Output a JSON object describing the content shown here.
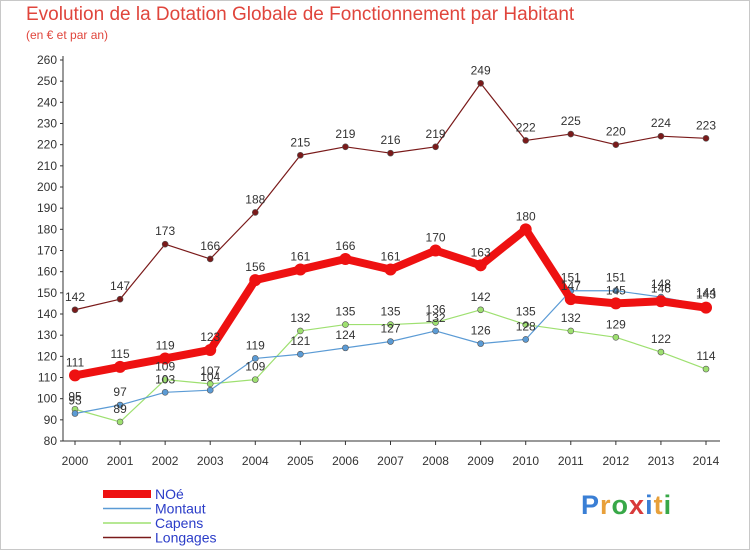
{
  "header": {
    "title": "Evolution de la Dotation Globale de Fonctionnement par Habitant",
    "subtitle": "(en € et par an)"
  },
  "brand": {
    "logo_text": "Proxiti",
    "letter_colors": [
      "#3a7fd5",
      "#e8a03a",
      "#38a848",
      "#d83a3a",
      "#3a7fd5",
      "#e8a03a",
      "#38a848"
    ]
  },
  "chart_data": {
    "type": "line",
    "x": [
      "2000",
      "2001",
      "2002",
      "2003",
      "2004",
      "2005",
      "2006",
      "2007",
      "2008",
      "2009",
      "2010",
      "2011",
      "2012",
      "2013",
      "2014"
    ],
    "ylim": [
      80,
      260
    ],
    "yticks": [
      80,
      90,
      100,
      110,
      120,
      130,
      140,
      150,
      160,
      170,
      180,
      190,
      200,
      210,
      220,
      230,
      240,
      250,
      260
    ],
    "grid": false,
    "legend_position": "bottom-left",
    "series": [
      {
        "name": "Longages",
        "color": "#7a1a1a",
        "values": [
          142,
          147,
          173,
          166,
          188,
          215,
          219,
          216,
          219,
          249,
          222,
          225,
          220,
          224,
          223
        ]
      },
      {
        "name": "Capens",
        "color": "#9ee070",
        "values": [
          95,
          89,
          109,
          107,
          109,
          132,
          135,
          135,
          136,
          142,
          135,
          132,
          129,
          122,
          114
        ]
      },
      {
        "name": "Montaut",
        "color": "#5b9bd5",
        "values": [
          93,
          97,
          103,
          104,
          119,
          121,
          124,
          127,
          132,
          126,
          128,
          151,
          151,
          148,
          144
        ]
      },
      {
        "name": "NOé",
        "color": "#ee1111",
        "values": [
          111,
          115,
          119,
          123,
          156,
          161,
          166,
          161,
          170,
          163,
          180,
          147,
          145,
          146,
          143
        ]
      }
    ],
    "legend_order": [
      "NOé",
      "Montaut",
      "Capens",
      "Longages"
    ]
  }
}
